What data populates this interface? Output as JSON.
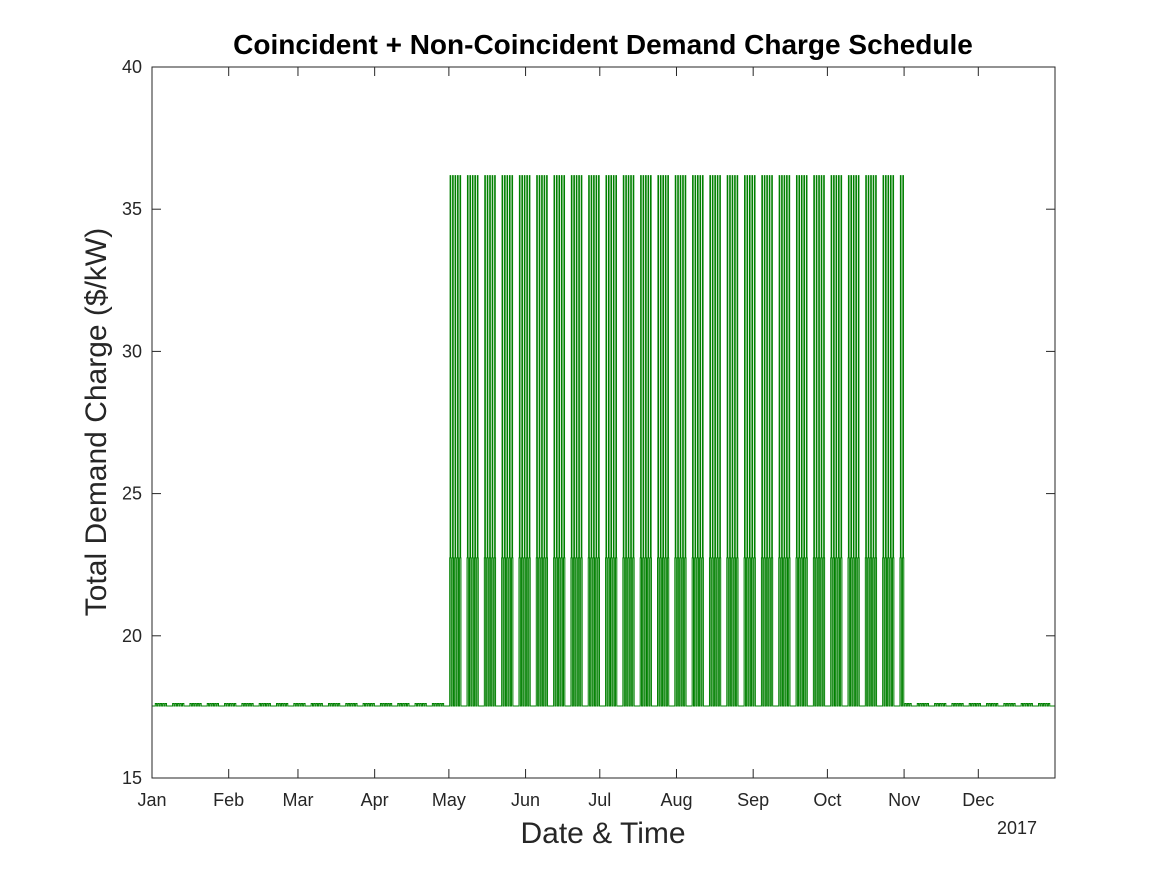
{
  "chart_data": {
    "type": "line",
    "title": "Coincident + Non-Coincident Demand Charge Schedule",
    "xlabel": "Date & Time",
    "ylabel": "Total Demand Charge ($/kW)",
    "x_secondary_label": "2017",
    "x_range": [
      "2017-01-01",
      "2017-12-31"
    ],
    "ylim": [
      15,
      40
    ],
    "y_ticks": [
      15,
      20,
      25,
      30,
      35,
      40
    ],
    "x_tick_labels": [
      "Jan",
      "Feb",
      "Mar",
      "Apr",
      "May",
      "Jun",
      "Jul",
      "Aug",
      "Sep",
      "Oct",
      "Nov",
      "Dec"
    ],
    "grid": false,
    "line_color": "#008000",
    "series": [
      {
        "description": "Hourly demand charge; weekday on-peak spikes May–Oct",
        "base_value": 17.53,
        "winter_weekday_value": 17.62,
        "summer_partial_peak_value": 22.74,
        "summer_on_peak_value": 36.18,
        "summer_period": [
          "2017-05-01",
          "2017-10-31"
        ]
      }
    ]
  }
}
